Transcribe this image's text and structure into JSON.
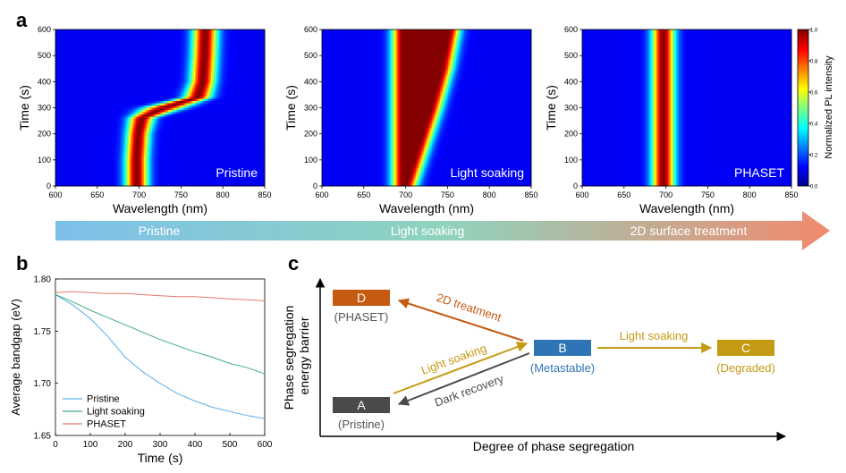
{
  "panel_labels": {
    "a": "a",
    "b": "b",
    "c": "c"
  },
  "colors": {
    "pristine": "#5aaee8",
    "light_soaking": "#3fae86",
    "phaset": "#e5786a",
    "box_A": "#4a4a4a",
    "box_B": "#2f74b5",
    "box_C": "#c49a12",
    "box_D": "#c55a11",
    "arrow_2d": "#c55a11",
    "arrow_light": "#c49a12",
    "arrow_dark": "#4a4a4a",
    "gradient_start": "#7cc0ea",
    "gradient_mid": "#8fd3be",
    "gradient_end": "#f08a6e"
  },
  "process_arrow": {
    "labels": [
      "Pristine",
      "Light soaking",
      "2D surface treatment"
    ]
  },
  "heatmaps": [
    {
      "label": "Pristine",
      "xlabel": "Wavelength (nm)",
      "ylabel": "Time (s)"
    },
    {
      "label": "Light soaking",
      "xlabel": "Wavelength (nm)",
      "ylabel": "Time (s)"
    },
    {
      "label": "PHASET",
      "xlabel": "Wavelength (nm)",
      "ylabel": "Time (s)"
    }
  ],
  "colorbar": {
    "label": "Normalized PL intensity",
    "ticks": [
      "0.0",
      "0.2",
      "0.4",
      "0.6",
      "0.8",
      "1.0"
    ]
  },
  "diagram": {
    "ylabel_line1": "Phase segregation",
    "ylabel_line2": "energy barrier",
    "xlabel": "Degree of phase segregation",
    "boxes": {
      "A": {
        "letter": "A",
        "caption": "(Pristine)"
      },
      "B": {
        "letter": "B",
        "caption": "(Metastable)"
      },
      "C": {
        "letter": "C",
        "caption": "(Degraded)"
      },
      "D": {
        "letter": "D",
        "caption": "(PHASET)"
      }
    },
    "arrows": {
      "treatment": "2D treatment",
      "light_AB": "Light soaking",
      "dark": "Dark recovery",
      "light_BC": "Light soaking"
    }
  },
  "chart_data": [
    {
      "type": "heatmap",
      "title": "Pristine",
      "xlabel": "Wavelength (nm)",
      "ylabel": "Time (s)",
      "xlim": [
        600,
        850
      ],
      "ylim": [
        0,
        600
      ],
      "xticks": [
        600,
        650,
        700,
        750,
        800,
        850
      ],
      "yticks": [
        0,
        100,
        200,
        300,
        400,
        500,
        600
      ],
      "colorscale": "jet",
      "zlim": [
        0,
        1
      ],
      "peak_wavelength_trace": [
        {
          "t": 0,
          "peak": 697,
          "fwhm": 22
        },
        {
          "t": 100,
          "peak": 697,
          "fwhm": 22
        },
        {
          "t": 200,
          "peak": 699,
          "fwhm": 22
        },
        {
          "t": 260,
          "peak": 703,
          "fwhm": 24
        },
        {
          "t": 300,
          "peak": 730,
          "fwhm": 38
        },
        {
          "t": 340,
          "peak": 770,
          "fwhm": 26
        },
        {
          "t": 400,
          "peak": 776,
          "fwhm": 24
        },
        {
          "t": 500,
          "peak": 778,
          "fwhm": 24
        },
        {
          "t": 600,
          "peak": 779,
          "fwhm": 24
        }
      ]
    },
    {
      "type": "heatmap",
      "title": "Light soaking",
      "xlabel": "Wavelength (nm)",
      "ylabel": "Time (s)",
      "xlim": [
        600,
        850
      ],
      "ylim": [
        0,
        600
      ],
      "xticks": [
        600,
        650,
        700,
        750,
        800,
        850
      ],
      "yticks": [
        0,
        100,
        200,
        300,
        400,
        500,
        600
      ],
      "colorscale": "jet",
      "zlim": [
        0,
        1
      ],
      "peak_wavelength_trace": [
        {
          "t": 0,
          "peak": 697,
          "fwhm": 22,
          "tail": 700
        },
        {
          "t": 150,
          "peak": 697,
          "fwhm": 22,
          "tail": 715
        },
        {
          "t": 300,
          "peak": 697,
          "fwhm": 22,
          "tail": 730
        },
        {
          "t": 450,
          "peak": 697,
          "fwhm": 22,
          "tail": 743
        },
        {
          "t": 600,
          "peak": 697,
          "fwhm": 22,
          "tail": 752
        }
      ]
    },
    {
      "type": "heatmap",
      "title": "PHASET",
      "xlabel": "Wavelength (nm)",
      "ylabel": "Time (s)",
      "xlim": [
        600,
        850
      ],
      "ylim": [
        0,
        600
      ],
      "xticks": [
        600,
        650,
        700,
        750,
        800,
        850
      ],
      "yticks": [
        0,
        100,
        200,
        300,
        400,
        500,
        600
      ],
      "colorscale": "jet",
      "zlim": [
        0,
        1
      ],
      "peak_wavelength_trace": [
        {
          "t": 0,
          "peak": 697,
          "fwhm": 22
        },
        {
          "t": 600,
          "peak": 697,
          "fwhm": 22
        }
      ]
    },
    {
      "type": "line",
      "title": "",
      "xlabel": "Time (s)",
      "ylabel": "Average bandgap (eV)",
      "xlim": [
        0,
        600
      ],
      "ylim": [
        1.65,
        1.8
      ],
      "xticks": [
        0,
        100,
        200,
        300,
        400,
        500,
        600
      ],
      "yticks": [
        1.65,
        1.7,
        1.75,
        1.8
      ],
      "legend": "bottom-left",
      "series": [
        {
          "name": "Pristine",
          "x": [
            0,
            50,
            100,
            150,
            200,
            250,
            300,
            350,
            400,
            450,
            500,
            550,
            600
          ],
          "y": [
            1.785,
            1.775,
            1.762,
            1.745,
            1.725,
            1.711,
            1.7,
            1.69,
            1.683,
            1.677,
            1.673,
            1.669,
            1.666
          ]
        },
        {
          "name": "Light soaking",
          "x": [
            0,
            50,
            100,
            150,
            200,
            250,
            300,
            350,
            400,
            450,
            500,
            550,
            600
          ],
          "y": [
            1.785,
            1.778,
            1.77,
            1.763,
            1.756,
            1.749,
            1.742,
            1.736,
            1.73,
            1.725,
            1.719,
            1.715,
            1.709
          ]
        },
        {
          "name": "PHASET",
          "x": [
            0,
            50,
            100,
            150,
            200,
            250,
            300,
            350,
            400,
            450,
            500,
            550,
            600
          ],
          "y": [
            1.787,
            1.788,
            1.787,
            1.786,
            1.786,
            1.785,
            1.784,
            1.783,
            1.783,
            1.782,
            1.781,
            1.78,
            1.779
          ]
        }
      ]
    }
  ]
}
